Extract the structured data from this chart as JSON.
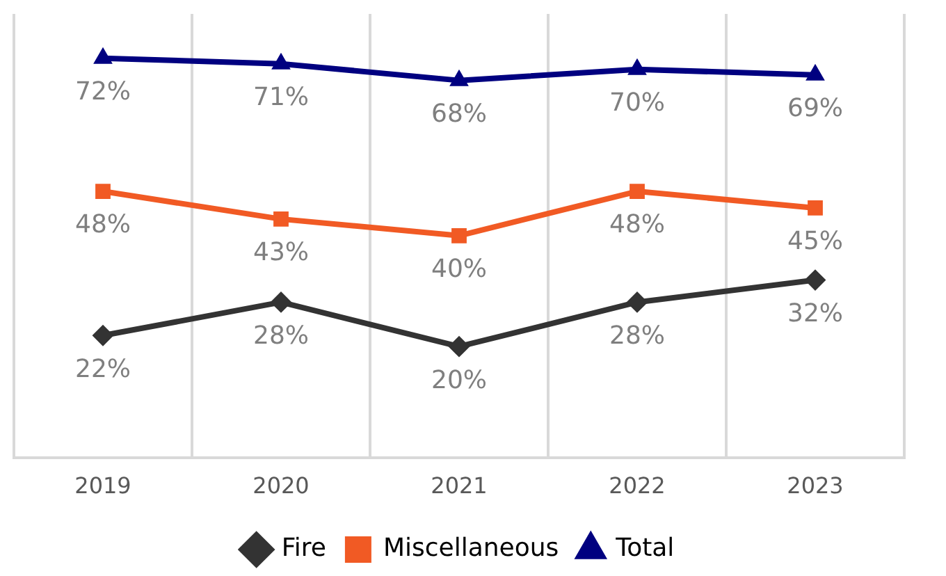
{
  "chart_data": {
    "type": "line",
    "categories": [
      "2019",
      "2020",
      "2021",
      "2022",
      "2023"
    ],
    "series": [
      {
        "name": "Fire",
        "color": "#333333",
        "marker": "diamond",
        "values": [
          22,
          28,
          20,
          28,
          32
        ],
        "value_labels": [
          "22%",
          "28%",
          "20%",
          "28%",
          "32%"
        ]
      },
      {
        "name": "Miscellaneous",
        "color": "#f15a24",
        "marker": "square",
        "values": [
          48,
          43,
          40,
          48,
          45
        ],
        "value_labels": [
          "48%",
          "43%",
          "40%",
          "48%",
          "45%"
        ]
      },
      {
        "name": "Total",
        "color": "#000080",
        "marker": "triangle",
        "values": [
          72,
          71,
          68,
          70,
          69
        ],
        "value_labels": [
          "72%",
          "71%",
          "68%",
          "70%",
          "69%"
        ]
      }
    ],
    "tick_labels": "x",
    "grid": "x",
    "legend": "bottom",
    "line_style": "solid"
  }
}
